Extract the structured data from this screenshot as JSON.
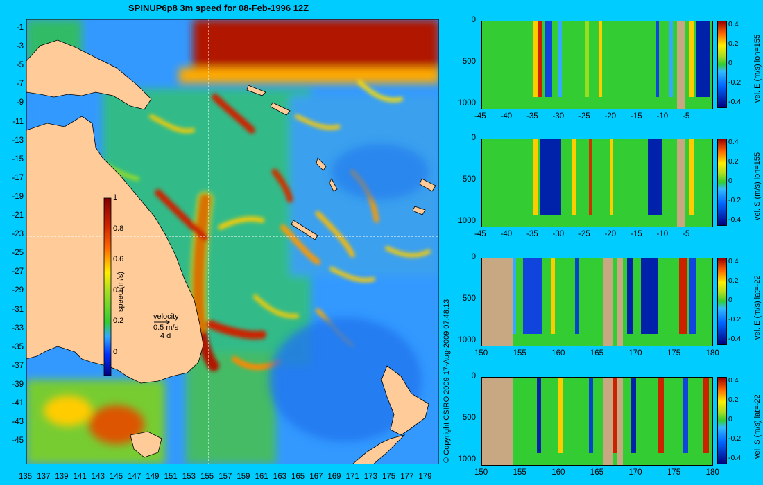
{
  "title": "SPINUP6p8 3m speed for 08-Feb-1996 12Z",
  "copyright": "© Copyright CSIRO 2009   17-Aug-2009 07:48:13",
  "map": {
    "lat_labels": [
      "-1",
      "-3",
      "-5",
      "-7",
      "-9",
      "-11",
      "-13",
      "-15",
      "-17",
      "-19",
      "-21",
      "-23",
      "-25",
      "-27",
      "-29",
      "-31",
      "-33",
      "-35",
      "-37",
      "-39",
      "-41",
      "-43",
      "-45"
    ],
    "lon_labels": [
      "135",
      "137",
      "139",
      "141",
      "143",
      "145",
      "147",
      "149",
      "151",
      "153",
      "155",
      "157",
      "159",
      "161",
      "163",
      "165",
      "167",
      "169",
      "171",
      "173",
      "175",
      "177",
      "179"
    ],
    "crosshair_lon": 155,
    "crosshair_lat": -22,
    "colorbar": {
      "label": "speed (m/s)",
      "ticks": [
        "1",
        "0.8",
        "0.6",
        "0.4",
        "0.2",
        "0"
      ],
      "range": [
        -0.15,
        1.0
      ]
    },
    "velocity_key": {
      "title": "velocity",
      "speed": "0.5 m/s",
      "duration": "4 d"
    },
    "land_color": "#ffcc99",
    "colors": {
      "background": "#00ccff",
      "low": "#0000aa",
      "mid": "#33cc33",
      "high": "#aa1100"
    }
  },
  "panels": [
    {
      "side_label": "vel. E (m/s) lon=155",
      "x_ticks": [
        "-45",
        "-40",
        "-35",
        "-30",
        "-25",
        "-20",
        "-15",
        "-10",
        "-5"
      ],
      "y_ticks": [
        "0",
        "500",
        "1000"
      ],
      "cbar_ticks": [
        "0.4",
        "0.2",
        "0",
        "-0.2",
        "-0.4"
      ],
      "bottom_color": "#c8a882"
    },
    {
      "side_label": "vel. S (m/s) lon=155",
      "x_ticks": [
        "-45",
        "-40",
        "-35",
        "-30",
        "-25",
        "-20",
        "-15",
        "-10",
        "-5"
      ],
      "y_ticks": [
        "0",
        "500",
        "1000"
      ],
      "cbar_ticks": [
        "0.4",
        "0.2",
        "0",
        "-0.2",
        "-0.4"
      ],
      "bottom_color": "#c8a882"
    },
    {
      "side_label": "vel. E (m/s) lat=-22",
      "x_ticks": [
        "150",
        "155",
        "160",
        "165",
        "170",
        "175",
        "180"
      ],
      "y_ticks": [
        "0",
        "500",
        "1000"
      ],
      "cbar_ticks": [
        "0.4",
        "0.2",
        "0",
        "-0.2",
        "-0.4"
      ],
      "bottom_color": "#c8a882"
    },
    {
      "side_label": "vel. S (m/s) lat=-22",
      "x_ticks": [
        "150",
        "155",
        "160",
        "165",
        "170",
        "175",
        "180"
      ],
      "y_ticks": [
        "0",
        "500",
        "1000"
      ],
      "cbar_ticks": [
        "0.4",
        "0.2",
        "0",
        "-0.2",
        "-0.4"
      ],
      "bottom_color": "#c8a882"
    }
  ]
}
